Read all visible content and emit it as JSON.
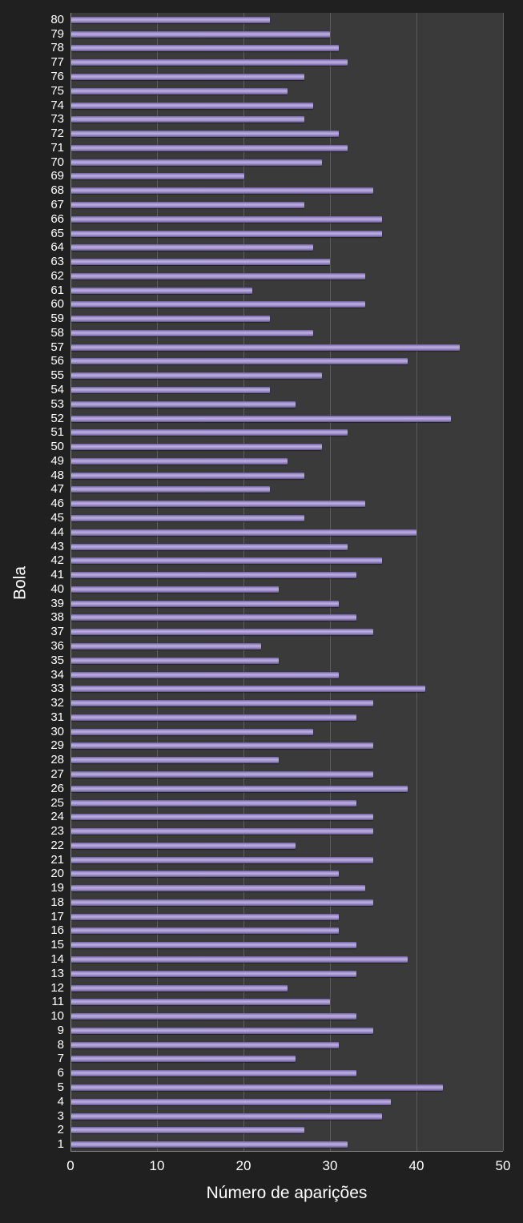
{
  "chart_data": {
    "type": "bar",
    "orientation": "horizontal",
    "title": "",
    "xlabel": "Número de aparições",
    "ylabel": "Bola",
    "xlim": [
      0,
      50
    ],
    "xticks": [
      0,
      10,
      20,
      30,
      40,
      50
    ],
    "grid": "vertical gridlines at major x ticks",
    "legend": "none",
    "categories": [
      1,
      2,
      3,
      4,
      5,
      6,
      7,
      8,
      9,
      10,
      11,
      12,
      13,
      14,
      15,
      16,
      17,
      18,
      19,
      20,
      21,
      22,
      23,
      24,
      25,
      26,
      27,
      28,
      29,
      30,
      31,
      32,
      33,
      34,
      35,
      36,
      37,
      38,
      39,
      40,
      41,
      42,
      43,
      44,
      45,
      46,
      47,
      48,
      49,
      50,
      51,
      52,
      53,
      54,
      55,
      56,
      57,
      58,
      59,
      60,
      61,
      62,
      63,
      64,
      65,
      66,
      67,
      68,
      69,
      70,
      71,
      72,
      73,
      74,
      75,
      76,
      77,
      78,
      79,
      80
    ],
    "values": [
      32,
      27,
      36,
      37,
      43,
      33,
      26,
      31,
      35,
      33,
      30,
      25,
      33,
      39,
      33,
      31,
      31,
      35,
      34,
      31,
      35,
      26,
      35,
      35,
      33,
      39,
      35,
      24,
      35,
      28,
      33,
      35,
      41,
      31,
      24,
      22,
      35,
      33,
      31,
      24,
      33,
      36,
      32,
      40,
      27,
      34,
      23,
      27,
      25,
      29,
      32,
      44,
      26,
      23,
      29,
      39,
      45,
      28,
      23,
      34,
      21,
      34,
      30,
      28,
      36,
      36,
      27,
      35,
      20,
      29,
      32,
      31,
      27,
      28,
      25,
      27,
      32,
      31,
      30,
      23
    ]
  },
  "colors": {
    "page_background": "#202020",
    "plot_background": "#3a3a3a",
    "bar_fill": "#a294cc",
    "bar_highlight": "#bcaede",
    "bar_shadow": "#5f5190",
    "gridline": "#5d5d5d",
    "axis_line": "#8a8a8a",
    "text": "#ffffff"
  }
}
